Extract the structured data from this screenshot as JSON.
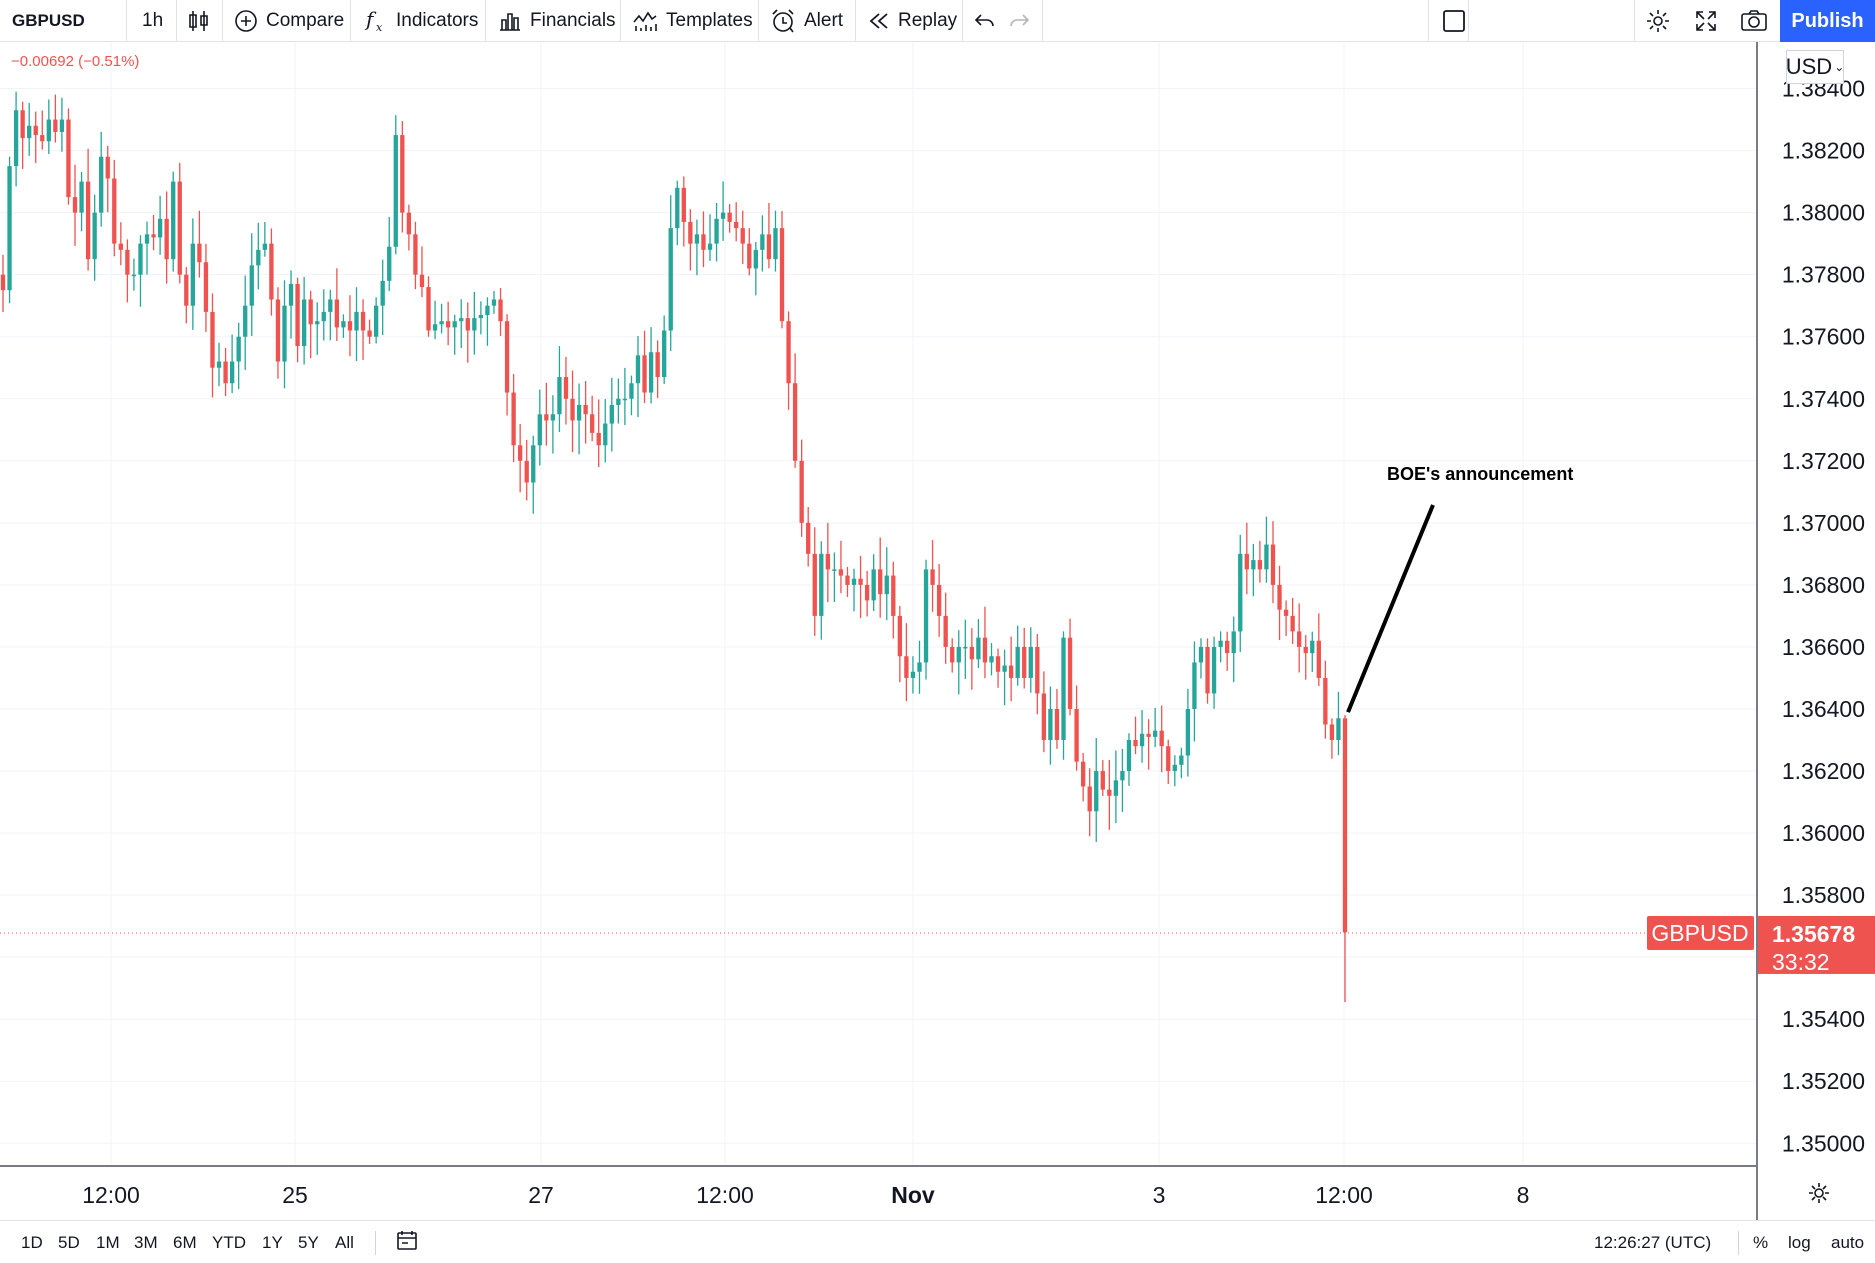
{
  "toolbar": {
    "symbol": "GBPUSD",
    "interval": "1h",
    "compare": "Compare",
    "indicators": "Indicators",
    "financials": "Financials",
    "templates": "Templates",
    "alert": "Alert",
    "replay": "Replay",
    "publish": "Publish"
  },
  "legend": {
    "change": "−0.00692 (−0.51%)"
  },
  "currency": "USD",
  "bottom": {
    "ranges": [
      "1D",
      "5D",
      "1M",
      "3M",
      "6M",
      "YTD",
      "1Y",
      "5Y",
      "All"
    ],
    "clock": "12:26:27 (UTC)",
    "percent": "%",
    "log": "log",
    "auto": "auto"
  },
  "chart_data": {
    "type": "candlestick",
    "symbol": "GBPUSD",
    "interval": "1h",
    "y_axis": {
      "ticks": [
        1.384,
        1.382,
        1.38,
        1.378,
        1.376,
        1.374,
        1.372,
        1.37,
        1.368,
        1.366,
        1.364,
        1.362,
        1.36,
        1.358,
        1.354,
        1.352,
        1.35
      ],
      "range": [
        1.3493,
        1.3855
      ]
    },
    "x_axis": {
      "tick_labels": [
        "12:00",
        "25",
        "27",
        "12:00",
        "Nov",
        "3",
        "12:00",
        "8"
      ]
    },
    "last_price": {
      "symbol": "GBPUSD",
      "value": "1.35678",
      "countdown": "33:32",
      "color": "#ef5350"
    },
    "annotation": {
      "text": "BOE's announcement"
    },
    "up_color": "#26a69a",
    "down_color": "#ef5350",
    "path": [
      1.3775,
      1.3815,
      1.3833,
      1.3824,
      1.3828,
      1.3825,
      1.3823,
      1.383,
      1.3826,
      1.383,
      1.3805,
      1.38,
      1.381,
      1.3785,
      1.38,
      1.3818,
      1.3811,
      1.379,
      1.3788,
      1.378,
      1.378,
      1.379,
      1.3793,
      1.3792,
      1.3798,
      1.3785,
      1.381,
      1.378,
      1.377,
      1.379,
      1.3784,
      1.3768,
      1.375,
      1.3752,
      1.3745,
      1.3752,
      1.376,
      1.377,
      1.3783,
      1.3788,
      1.379,
      1.3772,
      1.3752,
      1.377,
      1.3777,
      1.3757,
      1.3772,
      1.3764,
      1.3765,
      1.3768,
      1.3772,
      1.3763,
      1.3765,
      1.3762,
      1.3768,
      1.3762,
      1.376,
      1.377,
      1.3778,
      1.3789,
      1.3825,
      1.38,
      1.3793,
      1.378,
      1.3776,
      1.3762,
      1.3764,
      1.3765,
      1.3763,
      1.3765,
      1.3766,
      1.3762,
      1.3766,
      1.3767,
      1.377,
      1.3772,
      1.3765,
      1.3742,
      1.3725,
      1.372,
      1.3713,
      1.3725,
      1.3735,
      1.3733,
      1.3735,
      1.3747,
      1.374,
      1.3733,
      1.3738,
      1.3735,
      1.3729,
      1.3725,
      1.3732,
      1.3738,
      1.374,
      1.374,
      1.3745,
      1.3754,
      1.3742,
      1.3755,
      1.3747,
      1.3762,
      1.3795,
      1.3808,
      1.3797,
      1.379,
      1.3793,
      1.3788,
      1.379,
      1.3798,
      1.38,
      1.3797,
      1.3795,
      1.379,
      1.3782,
      1.3788,
      1.3793,
      1.3785,
      1.3795,
      1.3765,
      1.3745,
      1.372,
      1.37,
      1.369,
      1.367,
      1.369,
      1.3685,
      1.3685,
      1.3683,
      1.368,
      1.3682,
      1.368,
      1.3675,
      1.3685,
      1.3677,
      1.3683,
      1.367,
      1.3657,
      1.365,
      1.3652,
      1.3655,
      1.3685,
      1.368,
      1.367,
      1.366,
      1.3655,
      1.366,
      1.366,
      1.3656,
      1.3663,
      1.3655,
      1.3657,
      1.3652,
      1.3654,
      1.365,
      1.366,
      1.365,
      1.366,
      1.3645,
      1.363,
      1.364,
      1.363,
      1.3663,
      1.364,
      1.3623,
      1.3615,
      1.3607,
      1.362,
      1.3614,
      1.3612,
      1.3617,
      1.362,
      1.363,
      1.3628,
      1.3632,
      1.3631,
      1.3633,
      1.3628,
      1.362,
      1.3622,
      1.3625,
      1.364,
      1.3655,
      1.366,
      1.3645,
      1.366,
      1.3662,
      1.3658,
      1.3665,
      1.369,
      1.3685,
      1.3688,
      1.3685,
      1.3693,
      1.368,
      1.3672,
      1.367,
      1.3665,
      1.366,
      1.3658,
      1.3662,
      1.365,
      1.3635,
      1.363,
      1.3637,
      1.3568
    ]
  }
}
